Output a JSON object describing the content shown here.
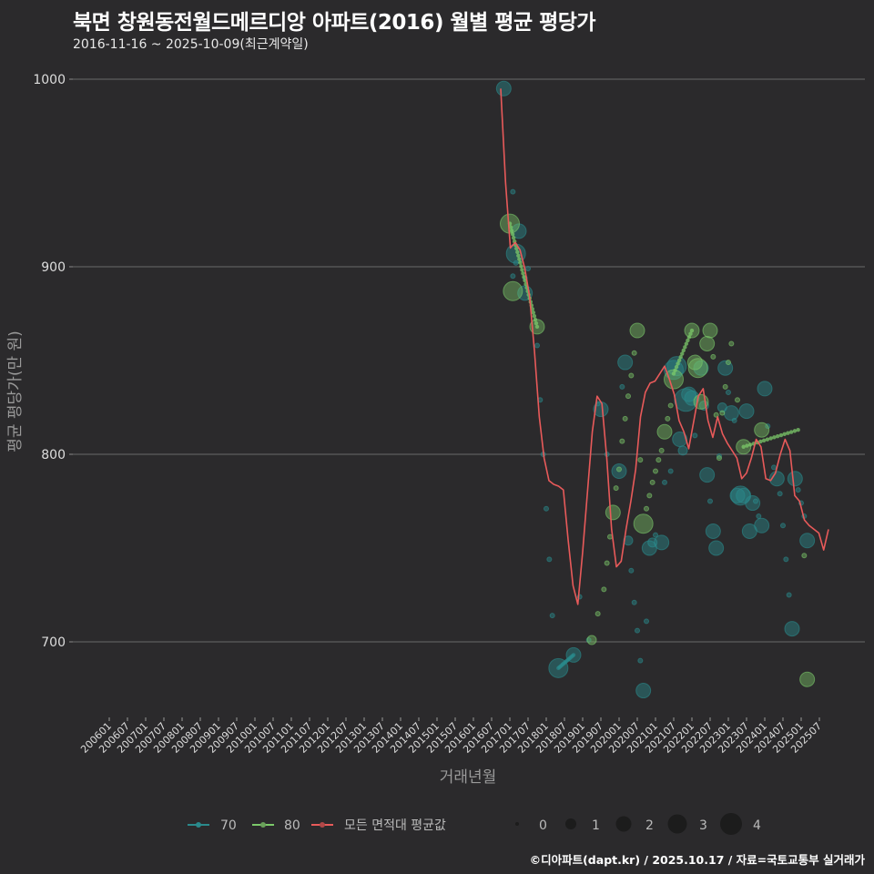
{
  "header": {
    "title": "북면 창원동전월드메르디앙 아파트(2016) 월별 평균 평당가",
    "subtitle": "2016-11-16 ~ 2025-10-09(최근계약일)"
  },
  "footer": {
    "credit": "©디아파트(dapt.kr) / 2025.10.17 / 자료=국토교통부 실거래가"
  },
  "colors": {
    "background": "#2b2a2c",
    "grid": "#6a6a6a",
    "series_70": "#2a8a8c",
    "series_80": "#7cc96a",
    "average": "#e85a5a"
  },
  "chart_data": {
    "type": "scatter",
    "title": "북면 창원동전월드메르디앙 아파트(2016) 월별 평균 평당가",
    "subtitle": "2016-11-16 ~ 2025-10-09(최근계약일)",
    "xlabel": "거래년월",
    "ylabel": "평균 평당가(만 원)",
    "ylim": [
      660,
      1005
    ],
    "yticks": [
      700,
      800,
      900,
      1000
    ],
    "xticks": [
      "200601",
      "200607",
      "200701",
      "200707",
      "200801",
      "200807",
      "200901",
      "200907",
      "201001",
      "201007",
      "201101",
      "201107",
      "201201",
      "201207",
      "201301",
      "201307",
      "201401",
      "201407",
      "201501",
      "201507",
      "201601",
      "201607",
      "201701",
      "201707",
      "201801",
      "201807",
      "201901",
      "201907",
      "202001",
      "202007",
      "202101",
      "202107",
      "202201",
      "202207",
      "202301",
      "202307",
      "202401",
      "202407",
      "202501",
      "202507"
    ],
    "grid": true,
    "legend": {
      "position": "bottom",
      "series": [
        {
          "label": "70",
          "color": "#2a8a8c"
        },
        {
          "label": "80",
          "color": "#7cc96a"
        },
        {
          "label": "모든 면적대 평균값",
          "color": "#e85a5a"
        }
      ],
      "size_legend": [
        0,
        1,
        2,
        3,
        4
      ]
    },
    "series": [
      {
        "name": "70",
        "points": [
          [
            "201611",
            995,
            2
          ],
          [
            "201702",
            940,
            0
          ],
          [
            "201703",
            907,
            3
          ],
          [
            "201704",
            919,
            2
          ],
          [
            "201702",
            895,
            0
          ],
          [
            "201703",
            902,
            0
          ],
          [
            "201706",
            886,
            2
          ],
          [
            "201706",
            894,
            0
          ],
          [
            "201707",
            899,
            0
          ],
          [
            "201710",
            858,
            0
          ],
          [
            "201711",
            829,
            0
          ],
          [
            "201712",
            800,
            0
          ],
          [
            "201801",
            771,
            0
          ],
          [
            "201802",
            744,
            0
          ],
          [
            "201803",
            714,
            0
          ],
          [
            "201805",
            686,
            3
          ],
          [
            "201810",
            693,
            2
          ],
          [
            "201812",
            724,
            0
          ],
          [
            "201903",
            701,
            0
          ],
          [
            "201906",
            827,
            0
          ],
          [
            "201907",
            824,
            2
          ],
          [
            "201909",
            800,
            0
          ],
          [
            "202001",
            791,
            2
          ],
          [
            "202002",
            836,
            0
          ],
          [
            "202003",
            849,
            2
          ],
          [
            "202004",
            754,
            1
          ],
          [
            "202005",
            738,
            0
          ],
          [
            "202006",
            721,
            0
          ],
          [
            "202007",
            706,
            0
          ],
          [
            "202008",
            690,
            0
          ],
          [
            "202009",
            674,
            2
          ],
          [
            "202010",
            711,
            0
          ],
          [
            "202011",
            750,
            2
          ],
          [
            "202012",
            753,
            1
          ],
          [
            "202101",
            757,
            0
          ],
          [
            "202103",
            753,
            2
          ],
          [
            "202104",
            785,
            0
          ],
          [
            "202106",
            791,
            0
          ],
          [
            "202107",
            845,
            3
          ],
          [
            "202108",
            847,
            3
          ],
          [
            "202109",
            808,
            2
          ],
          [
            "202110",
            802,
            1
          ],
          [
            "202111",
            829,
            4
          ],
          [
            "202112",
            832,
            2
          ],
          [
            "202201",
            830,
            2
          ],
          [
            "202202",
            810,
            0
          ],
          [
            "202204",
            846,
            2
          ],
          [
            "202205",
            826,
            1
          ],
          [
            "202206",
            789,
            2
          ],
          [
            "202207",
            775,
            0
          ],
          [
            "202208",
            759,
            2
          ],
          [
            "202209",
            750,
            2
          ],
          [
            "202210",
            799,
            0
          ],
          [
            "202211",
            825,
            1
          ],
          [
            "202212",
            846,
            2
          ],
          [
            "202301",
            833,
            0
          ],
          [
            "202302",
            822,
            2
          ],
          [
            "202303",
            818,
            0
          ],
          [
            "202304",
            778,
            2
          ],
          [
            "202305",
            778,
            3
          ],
          [
            "202306",
            778,
            2
          ],
          [
            "202307",
            823,
            2
          ],
          [
            "202308",
            759,
            2
          ],
          [
            "202309",
            774,
            2
          ],
          [
            "202310",
            775,
            0
          ],
          [
            "202311",
            767,
            0
          ],
          [
            "202312",
            762,
            2
          ],
          [
            "202401",
            835,
            2
          ],
          [
            "202402",
            815,
            0
          ],
          [
            "202404",
            793,
            0
          ],
          [
            "202405",
            787,
            2
          ],
          [
            "202406",
            779,
            0
          ],
          [
            "202407",
            762,
            0
          ],
          [
            "202408",
            744,
            0
          ],
          [
            "202409",
            725,
            0
          ],
          [
            "202410",
            707,
            2
          ],
          [
            "202411",
            787,
            2
          ],
          [
            "202412",
            781,
            0
          ],
          [
            "202501",
            774,
            0
          ],
          [
            "202502",
            767,
            0
          ],
          [
            "202503",
            754,
            2
          ]
        ]
      },
      {
        "name": "80",
        "points": [
          [
            "201701",
            923,
            3
          ],
          [
            "201702",
            887,
            3
          ],
          [
            "201710",
            868,
            2
          ],
          [
            "201904",
            701,
            1
          ],
          [
            "201906",
            715,
            0
          ],
          [
            "201908",
            728,
            0
          ],
          [
            "201909",
            742,
            0
          ],
          [
            "201910",
            756,
            0
          ],
          [
            "201911",
            769,
            2
          ],
          [
            "201912",
            782,
            0
          ],
          [
            "202001",
            792,
            0
          ],
          [
            "202002",
            807,
            0
          ],
          [
            "202003",
            819,
            0
          ],
          [
            "202004",
            831,
            0
          ],
          [
            "202005",
            842,
            0
          ],
          [
            "202006",
            854,
            0
          ],
          [
            "202007",
            866,
            2
          ],
          [
            "202008",
            797,
            0
          ],
          [
            "202009",
            763,
            3
          ],
          [
            "202010",
            771,
            0
          ],
          [
            "202011",
            778,
            0
          ],
          [
            "202012",
            785,
            0
          ],
          [
            "202101",
            791,
            0
          ],
          [
            "202102",
            797,
            0
          ],
          [
            "202103",
            802,
            0
          ],
          [
            "202104",
            812,
            2
          ],
          [
            "202105",
            819,
            0
          ],
          [
            "202106",
            826,
            0
          ],
          [
            "202107",
            840,
            3
          ],
          [
            "202201",
            866,
            2
          ],
          [
            "202202",
            849,
            2
          ],
          [
            "202203",
            846,
            3
          ],
          [
            "202204",
            828,
            2
          ],
          [
            "202206",
            859,
            2
          ],
          [
            "202207",
            866,
            2
          ],
          [
            "202208",
            852,
            0
          ],
          [
            "202209",
            821,
            0
          ],
          [
            "202210",
            798,
            0
          ],
          [
            "202211",
            822,
            0
          ],
          [
            "202212",
            836,
            0
          ],
          [
            "202301",
            849,
            0
          ],
          [
            "202302",
            859,
            0
          ],
          [
            "202304",
            829,
            0
          ],
          [
            "202306",
            804,
            2
          ],
          [
            "202312",
            813,
            2
          ],
          [
            "202502",
            746,
            0
          ],
          [
            "202503",
            680,
            2
          ]
        ],
        "trend_lines": [
          {
            "from": [
              "201701",
              923
            ],
            "to": [
              "201710",
              868
            ]
          },
          {
            "from": [
              "202306",
              804
            ],
            "to": [
              "202412",
              813
            ]
          },
          {
            "from": [
              "202107",
              843
            ],
            "to": [
              "202201",
              866
            ]
          }
        ]
      },
      {
        "name": "모든 면적대 평균값",
        "type": "line",
        "points": [
          [
            "201610",
            995
          ],
          [
            "201611",
            945
          ],
          [
            "201612",
            910
          ],
          [
            "201701",
            913
          ],
          [
            "201702",
            909
          ],
          [
            "201703",
            899
          ],
          [
            "201704",
            884
          ],
          [
            "201705",
            855
          ],
          [
            "201706",
            820
          ],
          [
            "201707",
            798
          ],
          [
            "201708",
            786
          ],
          [
            "201709",
            784
          ],
          [
            "201710",
            783
          ],
          [
            "201711",
            781
          ],
          [
            "201712",
            754
          ],
          [
            "201801",
            730
          ],
          [
            "201802",
            720
          ],
          [
            "201803",
            748
          ],
          [
            "201804",
            780
          ],
          [
            "201805",
            812
          ],
          [
            "201806",
            831
          ],
          [
            "201807",
            827
          ],
          [
            "201808",
            798
          ],
          [
            "201809",
            760
          ],
          [
            "201810",
            740
          ],
          [
            "201811",
            743
          ],
          [
            "201812",
            760
          ],
          [
            "201901",
            775
          ],
          [
            "201902",
            792
          ],
          [
            "201903",
            820
          ],
          [
            "201904",
            833
          ],
          [
            "201905",
            838
          ],
          [
            "201906",
            839
          ],
          [
            "201907",
            843
          ],
          [
            "201908",
            847
          ],
          [
            "201909",
            840
          ],
          [
            "201910",
            832
          ],
          [
            "201911",
            818
          ],
          [
            "201912",
            812
          ],
          [
            "202001",
            803
          ],
          [
            "202002",
            817
          ],
          [
            "202003",
            831
          ],
          [
            "202004",
            835
          ],
          [
            "202005",
            818
          ],
          [
            "202006",
            809
          ],
          [
            "202007",
            820
          ],
          [
            "202008",
            811
          ],
          [
            "202009",
            806
          ],
          [
            "202010",
            802
          ],
          [
            "202011",
            798
          ],
          [
            "202012",
            787
          ],
          [
            "202101",
            790
          ],
          [
            "202102",
            798
          ],
          [
            "202103",
            808
          ],
          [
            "202104",
            804
          ],
          [
            "202105",
            787
          ],
          [
            "202106",
            786
          ],
          [
            "202107",
            790
          ],
          [
            "202108",
            800
          ],
          [
            "202109",
            808
          ],
          [
            "202110",
            802
          ],
          [
            "202111",
            778
          ],
          [
            "202112",
            775
          ],
          [
            "202201",
            765
          ],
          [
            "202202",
            762
          ],
          [
            "202203",
            760
          ],
          [
            "202204",
            758
          ],
          [
            "202205",
            749
          ],
          [
            "202206",
            760
          ]
        ]
      }
    ]
  },
  "axes": {
    "y_title": "평균 평당가(만 원)",
    "x_title": "거래년월",
    "y_ticks": [
      "1000",
      "900",
      "800",
      "700"
    ]
  },
  "legend": {
    "s70": "70",
    "s80": "80",
    "avg": "모든 면적대 평균값",
    "sizes": [
      "0",
      "1",
      "2",
      "3",
      "4"
    ]
  }
}
